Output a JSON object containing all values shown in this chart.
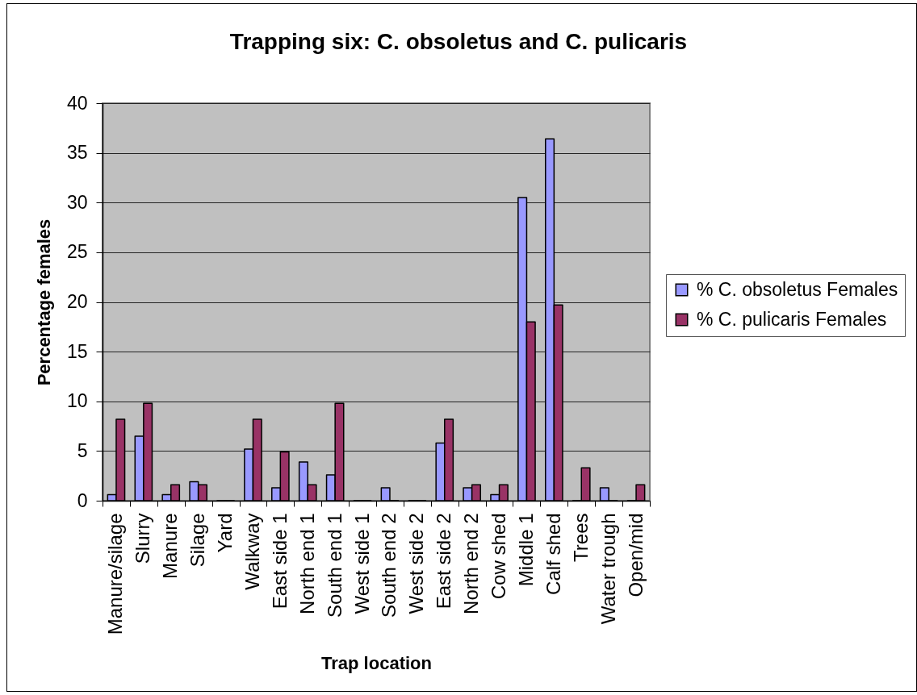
{
  "chart_data": {
    "type": "bar",
    "title": "Trapping six: C. obsoletus and C. pulicaris",
    "xlabel": "Trap location",
    "ylabel": "Percentage females",
    "categories": [
      "Manure/silage",
      "Slurry",
      "Manure",
      "Silage",
      "Yard",
      "Walkway",
      "East side 1",
      "North end 1",
      "South end 1",
      "West side 1",
      "South end 2",
      "West side 2",
      "East side 2",
      "North end 2",
      "Cow shed",
      "Middle 1",
      "Calf shed",
      "Trees",
      "Water trough",
      "Open/mid"
    ],
    "series": [
      {
        "name": "% C. obsoletus Females",
        "color": "#9999ff",
        "values": [
          0.6,
          6.5,
          0.6,
          1.9,
          0,
          5.2,
          1.3,
          3.9,
          2.6,
          0,
          1.3,
          0,
          5.8,
          1.3,
          0.6,
          30.5,
          36.4,
          0,
          1.3,
          0
        ]
      },
      {
        "name": "% C. pulicaris Females",
        "color": "#993366",
        "values": [
          8.2,
          9.8,
          1.6,
          1.6,
          0,
          8.2,
          4.9,
          1.6,
          9.8,
          0,
          0,
          0,
          8.2,
          1.6,
          1.6,
          18.0,
          19.7,
          3.3,
          0,
          1.6
        ]
      }
    ],
    "ylim": [
      0,
      40
    ],
    "yticks": [
      0,
      5,
      10,
      15,
      20,
      25,
      30,
      35,
      40
    ],
    "grid": "y",
    "legend": "right"
  }
}
